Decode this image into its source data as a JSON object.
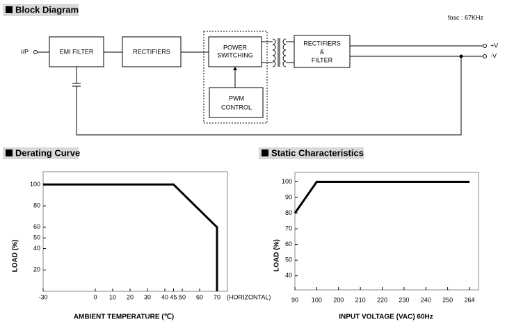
{
  "block_diagram": {
    "header": "Block Diagram",
    "fosc": "fosc : 67KHz",
    "input": "I/P",
    "emi": "EMI FILTER",
    "rect": "RECTIFIERS",
    "power": [
      "POWER",
      "SWITCHING"
    ],
    "pwm": [
      "PWM",
      "CONTROL"
    ],
    "out_block": [
      "RECTIFIERS",
      "&",
      "FILTER"
    ],
    "outputs": [
      "+V",
      "-V"
    ]
  },
  "chart_data": [
    {
      "type": "line",
      "title": "Derating Curve",
      "x_label": "AMBIENT TEMPERATURE (℃)",
      "y_label": "LOAD (%)",
      "x_note": "(HORIZONTAL)",
      "x": [
        -30,
        45,
        70,
        70
      ],
      "values": [
        100,
        100,
        60,
        0
      ],
      "color": "#000000",
      "xlim": [
        -30,
        76
      ],
      "xticks": [
        -30,
        0,
        10,
        20,
        30,
        40,
        45,
        50,
        60,
        70
      ],
      "ylim": [
        0,
        112
      ],
      "yticks": [
        20,
        40,
        50,
        60,
        80,
        100
      ]
    },
    {
      "type": "line",
      "title": "Static Characteristics",
      "x_label": "INPUT VOLTAGE (VAC) 60Hz",
      "y_label": "LOAD (%)",
      "categories": [
        "90",
        "100",
        "200",
        "210",
        "220",
        "230",
        "240",
        "250",
        "264"
      ],
      "values": [
        80,
        100,
        100,
        100,
        100,
        100,
        100,
        100,
        100
      ],
      "color": "#000000",
      "ylim": [
        31,
        106
      ],
      "yticks": [
        40,
        50,
        60,
        70,
        80,
        90,
        100
      ]
    }
  ]
}
